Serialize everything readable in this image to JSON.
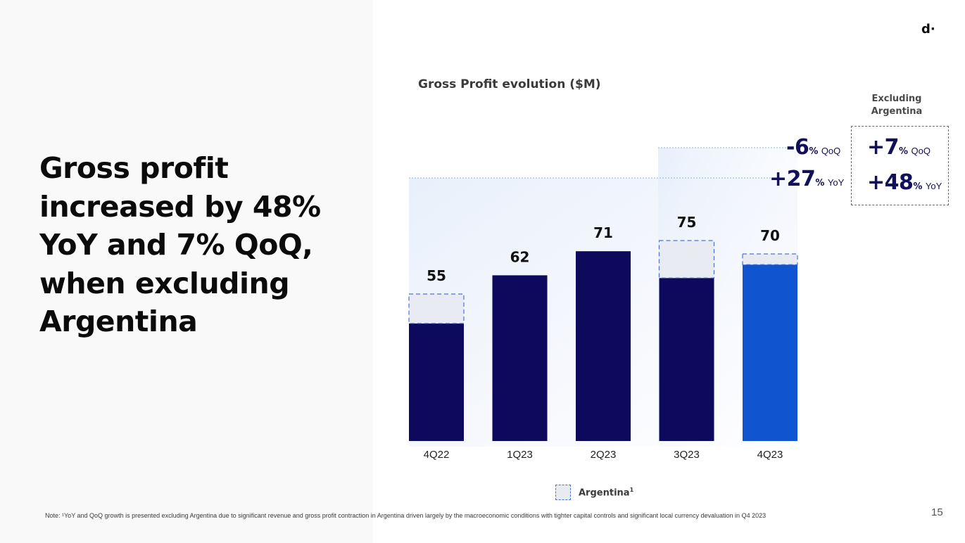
{
  "headline": "Gross profit increased by 48% YoY and 7% QoQ, when excluding Argentina",
  "logo_text": "d·",
  "chart_title": "Gross Profit evolution ($M)",
  "chart_data": {
    "type": "bar",
    "title": "Gross Profit evolution ($M)",
    "categories": [
      "4Q22",
      "1Q23",
      "2Q23",
      "3Q23",
      "4Q23"
    ],
    "values": [
      55,
      62,
      71,
      75,
      70
    ],
    "series": [
      {
        "name": "",
        "values": [
          44,
          62,
          71,
          61,
          66
        ]
      },
      {
        "name": "Argentina",
        "values": [
          11,
          0,
          0,
          14,
          4
        ]
      }
    ],
    "ylim": [
      0,
      80
    ],
    "bar_colors": [
      "#0d0a5e",
      "#0d0a5e",
      "#0d0a5e",
      "#0d0a5e",
      "#1055cf"
    ],
    "argentina_color": "#e9ebf2",
    "legend": [
      "Argentina"
    ],
    "legend_position": "bottom-center",
    "grid": false
  },
  "growth": {
    "qoq_value": "-6",
    "qoq_pct": "%",
    "qoq_unit": "QoQ",
    "yoy_value": "+27",
    "yoy_pct": "%",
    "yoy_unit": "YoY"
  },
  "excluding": {
    "title_line1": "Excluding",
    "title_line2": "Argentina",
    "qoq_value": "+7",
    "qoq_pct": "%",
    "qoq_unit": "QoQ",
    "yoy_value": "+48",
    "yoy_pct": "%",
    "yoy_unit": "YoY"
  },
  "legend_label": "Argentina",
  "legend_sup": "1",
  "footnote": "Note: ¹YoY and QoQ growth is presented excluding Argentina due to significant revenue and gross profit contraction in Argentina driven largely by the macroeconomic conditions with tighter capital controls and significant local currency devaluation in Q4 2023",
  "page_number": "15",
  "colors": {
    "navy": "#0d0a5e",
    "blue": "#1055cf",
    "text_navy": "#111059"
  }
}
